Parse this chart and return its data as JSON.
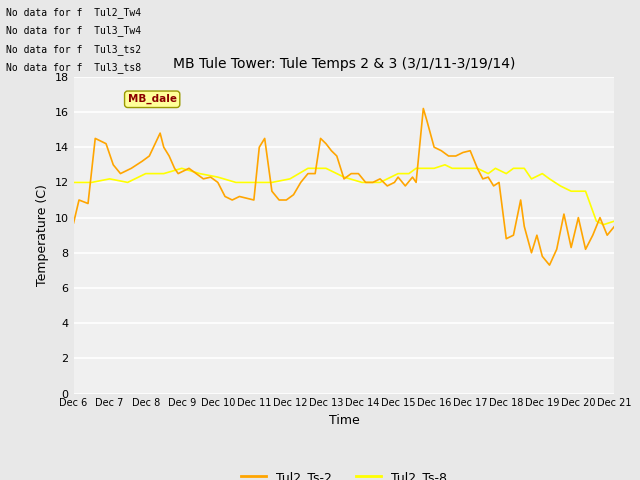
{
  "title": "MB Tule Tower: Tule Temps 2 & 3 (3/1/11-3/19/14)",
  "xlabel": "Time",
  "ylabel": "Temperature (C)",
  "ylim": [
    0,
    18
  ],
  "yticks": [
    0,
    2,
    4,
    6,
    8,
    10,
    12,
    14,
    16,
    18
  ],
  "xtick_labels": [
    "Dec 6",
    "Dec 7",
    "Dec 8",
    "Dec 9",
    "Dec 10",
    "Dec 11",
    "Dec 12",
    "Dec 13",
    "Dec 14",
    "Dec 15",
    "Dec 16",
    "Dec 17",
    "Dec 18",
    "Dec 19",
    "Dec 20",
    "Dec 21"
  ],
  "no_data_lines": [
    "No data for f  Tul2_Tw4",
    "No data for f  Tul3_Tw4",
    "No data for f  Tul3_ts2",
    "No data for f  Tul3_ts8"
  ],
  "legend_labels": [
    "Tul2_Ts-2",
    "Tul2_Ts-8"
  ],
  "line1_color": "#FFA500",
  "line2_color": "#FFFF00",
  "bg_color": "#E8E8E8",
  "plot_bg_color": "#F0F0F0",
  "tooltip_text": "MB_dale",
  "ts2_x": [
    0,
    0.15,
    0.4,
    0.6,
    0.9,
    1.1,
    1.3,
    1.6,
    1.9,
    2.1,
    2.4,
    2.5,
    2.65,
    2.8,
    2.9,
    3.1,
    3.2,
    3.4,
    3.6,
    3.8,
    4.0,
    4.2,
    4.4,
    4.6,
    4.8,
    5.0,
    5.15,
    5.3,
    5.5,
    5.7,
    5.9,
    6.1,
    6.3,
    6.5,
    6.7,
    6.85,
    7.0,
    7.15,
    7.3,
    7.5,
    7.7,
    7.9,
    8.1,
    8.3,
    8.5,
    8.7,
    8.9,
    9.0,
    9.2,
    9.4,
    9.5,
    9.7,
    9.8,
    10.0,
    10.2,
    10.4,
    10.6,
    10.8,
    11.0,
    11.2,
    11.35,
    11.5,
    11.65,
    11.8,
    12.0,
    12.2,
    12.4,
    12.5,
    12.7,
    12.85,
    13.0,
    13.2,
    13.4,
    13.6,
    13.8,
    14.0,
    14.2,
    14.4,
    14.6,
    14.8,
    15.0
  ],
  "ts2_y": [
    9.7,
    11.0,
    10.8,
    14.5,
    14.2,
    13.0,
    12.5,
    12.8,
    13.2,
    13.5,
    14.8,
    14.0,
    13.5,
    12.8,
    12.5,
    12.7,
    12.8,
    12.5,
    12.2,
    12.3,
    12.0,
    11.2,
    11.0,
    11.2,
    11.1,
    11.0,
    14.0,
    14.5,
    11.5,
    11.0,
    11.0,
    11.3,
    12.0,
    12.5,
    12.5,
    14.5,
    14.2,
    13.8,
    13.5,
    12.2,
    12.5,
    12.5,
    12.0,
    12.0,
    12.2,
    11.8,
    12.0,
    12.3,
    11.8,
    12.3,
    12.0,
    16.2,
    15.5,
    14.0,
    13.8,
    13.5,
    13.5,
    13.7,
    13.8,
    12.8,
    12.2,
    12.3,
    11.8,
    12.0,
    8.8,
    9.0,
    11.0,
    9.5,
    8.0,
    9.0,
    7.8,
    7.3,
    8.2,
    10.2,
    8.3,
    10.0,
    8.2,
    9.0,
    10.0,
    9.0,
    9.5
  ],
  "ts8_x": [
    0,
    0.5,
    1.0,
    1.5,
    2.0,
    2.5,
    3.0,
    3.5,
    4.0,
    4.5,
    5.0,
    5.5,
    6.0,
    6.5,
    7.0,
    7.5,
    8.0,
    8.5,
    9.0,
    9.3,
    9.5,
    9.8,
    10.0,
    10.3,
    10.5,
    10.8,
    11.0,
    11.2,
    11.5,
    11.7,
    12.0,
    12.2,
    12.5,
    12.7,
    13.0,
    13.2,
    13.5,
    13.8,
    14.0,
    14.2,
    14.5,
    14.7,
    15.0
  ],
  "ts8_y": [
    12.0,
    12.0,
    12.2,
    12.0,
    12.5,
    12.5,
    12.8,
    12.5,
    12.3,
    12.0,
    12.0,
    12.0,
    12.2,
    12.8,
    12.8,
    12.3,
    12.0,
    12.0,
    12.5,
    12.5,
    12.8,
    12.8,
    12.8,
    13.0,
    12.8,
    12.8,
    12.8,
    12.8,
    12.5,
    12.8,
    12.5,
    12.8,
    12.8,
    12.2,
    12.5,
    12.2,
    11.8,
    11.5,
    11.5,
    11.5,
    9.8,
    9.6,
    9.8
  ]
}
